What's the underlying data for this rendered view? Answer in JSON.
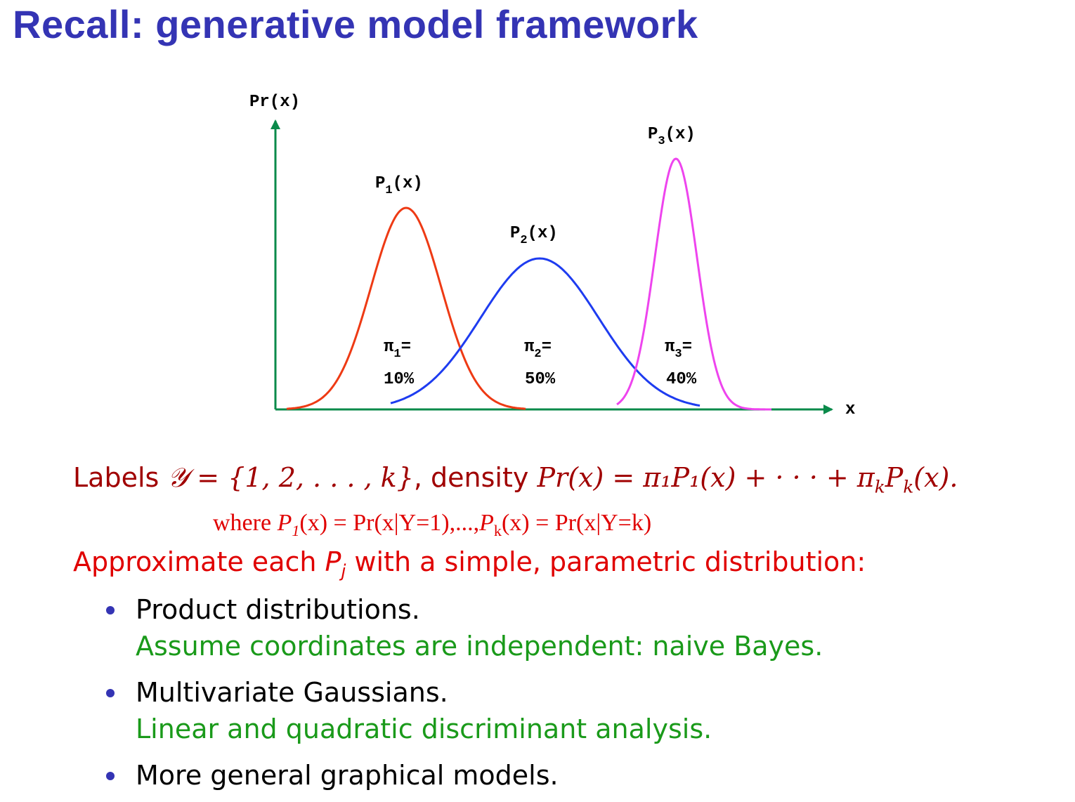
{
  "title": "Recall:  generative model framework",
  "figure": {
    "y_axis_label": "Pr(x)",
    "x_axis_label": "x",
    "curves": [
      {
        "label_main": "P",
        "label_sub": "1",
        "label_tail": "(x)",
        "color": "#ee3a14",
        "pi_main": "π",
        "pi_sub": "1",
        "pi_tail": "=",
        "weight": "10%"
      },
      {
        "label_main": "P",
        "label_sub": "2",
        "label_tail": "(x)",
        "color": "#1e3cf0",
        "pi_main": "π",
        "pi_sub": "2",
        "pi_tail": "=",
        "weight": "50%"
      },
      {
        "label_main": "P",
        "label_sub": "3",
        "label_tail": "(x)",
        "color": "#ee44ee",
        "pi_main": "π",
        "pi_sub": "3",
        "pi_tail": "=",
        "weight": "40%"
      }
    ],
    "axis_color": "#0a8a4a"
  },
  "text": {
    "labels_word": "Labels",
    "labels_math": "𝒴 = {1, 2, . . . , k}",
    "density_word": ", density",
    "density_math": "Pr(x) = π₁P₁(x) + · · · + π",
    "density_math_k": "k",
    "density_math_end": "P",
    "density_math_k2": "k",
    "density_math_final": "(x).",
    "where_prefix": "where ",
    "where_p1": "P",
    "where_p1_sub": "1",
    "where_mid": "(x) = Pr(x|Y=1),...,",
    "where_pk": "P",
    "where_pk_sub": "k",
    "where_end": "(x) = Pr(x|Y=k)",
    "approx_prefix": "Approximate each ",
    "approx_p": "P",
    "approx_sub": "j",
    "approx_suffix": " with a simple, parametric distribution:"
  },
  "bullets": [
    {
      "main": "Product distributions.",
      "sub": "Assume coordinates are independent:  naive Bayes."
    },
    {
      "main": "Multivariate Gaussians.",
      "sub": "Linear and quadratic discriminant analysis."
    },
    {
      "main": "More general graphical models.",
      "sub": ""
    }
  ],
  "colors": {
    "title": "#3434b4",
    "dark_red": "#a00000",
    "red": "#e00000",
    "green": "#1a9a1a",
    "bullet": "#3434b4"
  }
}
